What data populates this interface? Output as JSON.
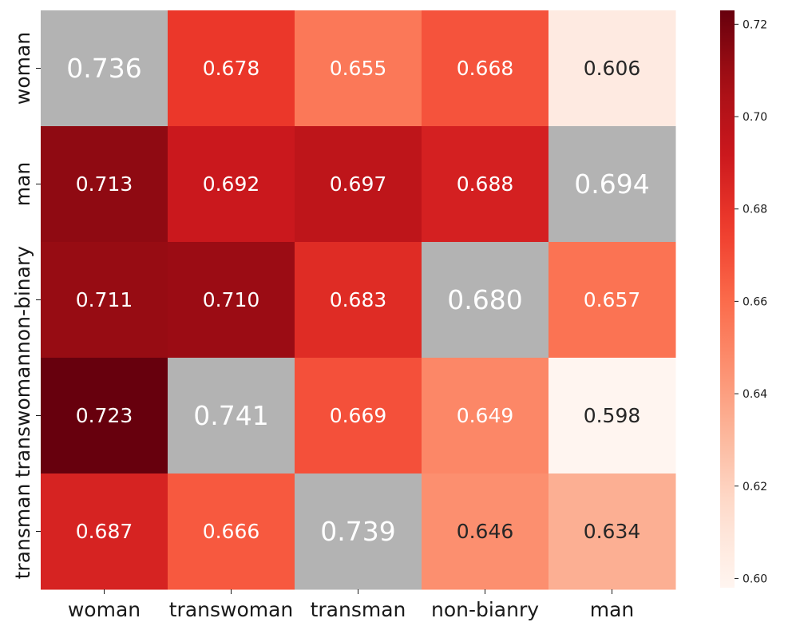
{
  "chart_data": {
    "type": "heatmap",
    "title": "",
    "xlabel": "",
    "ylabel": "",
    "x_categories": [
      "woman",
      "transwoman",
      "transman",
      "non-bianry",
      "man"
    ],
    "y_categories": [
      "woman",
      "man",
      "non-binary",
      "transwoman",
      "transman"
    ],
    "values": [
      [
        0.736,
        0.678,
        0.655,
        0.668,
        0.606
      ],
      [
        0.713,
        0.692,
        0.697,
        0.688,
        0.694
      ],
      [
        0.711,
        0.71,
        0.683,
        0.68,
        0.657
      ],
      [
        0.723,
        0.741,
        0.669,
        0.649,
        0.598
      ],
      [
        0.687,
        0.666,
        0.739,
        0.646,
        0.634
      ]
    ],
    "value_labels": [
      [
        "0.736",
        "0.678",
        "0.655",
        "0.668",
        "0.606"
      ],
      [
        "0.713",
        "0.692",
        "0.697",
        "0.688",
        "0.694"
      ],
      [
        "0.711",
        "0.710",
        "0.683",
        "0.680",
        "0.657"
      ],
      [
        "0.723",
        "0.741",
        "0.669",
        "0.649",
        "0.598"
      ],
      [
        "0.687",
        "0.666",
        "0.739",
        "0.646",
        "0.634"
      ]
    ],
    "masked_diagonal": true,
    "masked_cells": [
      [
        0,
        0
      ],
      [
        1,
        4
      ],
      [
        2,
        3
      ],
      [
        3,
        1
      ],
      [
        4,
        2
      ]
    ],
    "masked_color": "#b3b3b3",
    "colormap": "Reds",
    "vmin": 0.598,
    "vmax": 0.723,
    "colorbar_ticks": [
      0.6,
      0.62,
      0.64,
      0.66,
      0.68,
      0.7,
      0.72
    ],
    "colorbar_tick_labels": [
      "0.60",
      "0.62",
      "0.64",
      "0.66",
      "0.68",
      "0.70",
      "0.72"
    ]
  }
}
